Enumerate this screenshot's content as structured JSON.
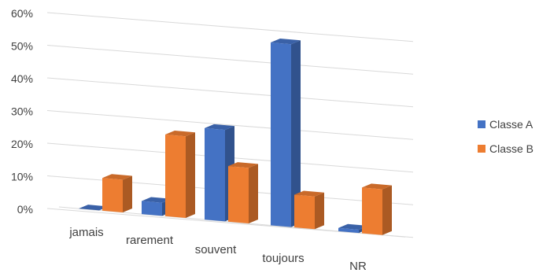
{
  "chart_data": {
    "type": "bar",
    "subtype": "3d-clustered-column",
    "categories": [
      "jamais",
      "rarement",
      "souvent",
      "toujours",
      "NR"
    ],
    "series": [
      {
        "name": "Classe A",
        "color": "#4472C4",
        "values": [
          0,
          4,
          28,
          56,
          1
        ]
      },
      {
        "name": "Classe B",
        "color": "#ED7D31",
        "values": [
          10,
          25,
          17,
          10,
          14
        ]
      }
    ],
    "y_ticks": [
      "0%",
      "10%",
      "20%",
      "30%",
      "40%",
      "50%",
      "60%"
    ],
    "ylim": [
      0,
      60
    ],
    "grid": true,
    "legend_position": "right"
  }
}
